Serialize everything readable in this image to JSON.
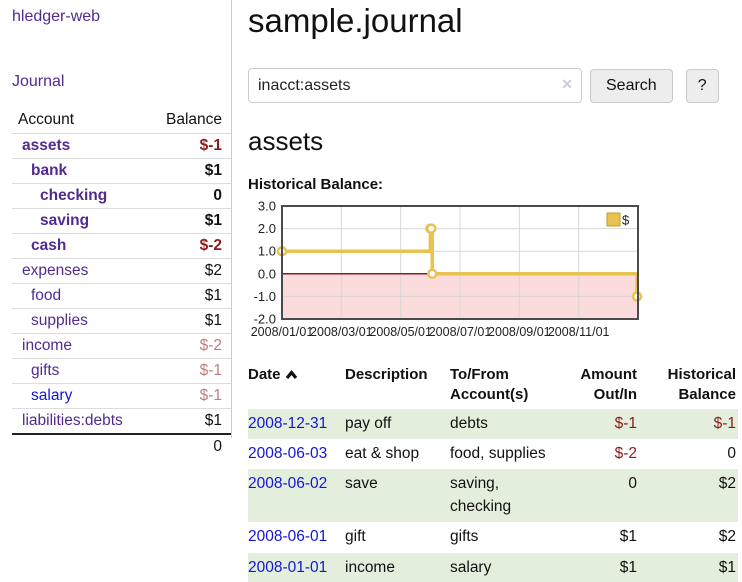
{
  "colors": {
    "link_purple": "#512b8f",
    "link_blue": "#1515d8",
    "neg_strong": "#8e1a1a",
    "neg_muted": "#c17d7d",
    "row_green": "#e3efdc",
    "button_bg": "#ededed"
  },
  "sidebar": {
    "app_title": "hledger-web",
    "journal_label": "Journal",
    "accounts_table": {
      "account_header": "Account",
      "balance_header": "Balance",
      "rows": [
        {
          "name": "assets",
          "indent": 1,
          "bold": true,
          "balance": "$-1"
        },
        {
          "name": "bank",
          "indent": 2,
          "bold": true,
          "balance": "$1"
        },
        {
          "name": "checking",
          "indent": 3,
          "bold": true,
          "balance": "0"
        },
        {
          "name": "saving",
          "indent": 3,
          "bold": true,
          "balance": "$1"
        },
        {
          "name": "cash",
          "indent": 2,
          "bold": true,
          "balance": "$-2"
        },
        {
          "name": "expenses",
          "indent": 1,
          "bold": false,
          "balance": "$2"
        },
        {
          "name": "food",
          "indent": 2,
          "bold": false,
          "balance": "$1"
        },
        {
          "name": "supplies",
          "indent": 2,
          "bold": false,
          "balance": "$1"
        },
        {
          "name": "income",
          "indent": 1,
          "bold": false,
          "balance": "$-2"
        },
        {
          "name": "gifts",
          "indent": 2,
          "bold": false,
          "balance": "$-1"
        },
        {
          "name": "salary",
          "indent": 2,
          "bold": false,
          "balance": "$-1",
          "link_variant": "blue"
        },
        {
          "name": "liabilities:debts",
          "indent": 1,
          "bold": false,
          "balance": "$1"
        }
      ],
      "total": "0"
    }
  },
  "header": {
    "title": "sample.journal"
  },
  "search": {
    "value": "inacct:assets",
    "clear_icon": "✕",
    "button_label": "Search",
    "help_label": "?"
  },
  "account_page": {
    "heading": "assets",
    "chart_label": "Historical Balance:"
  },
  "chart_data": {
    "type": "line",
    "title": "Historical Balance",
    "series": [
      {
        "name": "$",
        "step": true,
        "points": [
          {
            "date": "2008-01-01",
            "value": 1
          },
          {
            "date": "2008-06-01",
            "value": 2
          },
          {
            "date": "2008-06-02",
            "value": 2
          },
          {
            "date": "2008-06-03",
            "value": 0
          },
          {
            "date": "2008-12-31",
            "value": -1
          }
        ]
      }
    ],
    "ylim": [
      -2.0,
      3.0
    ],
    "yticks": [
      3.0,
      2.0,
      1.0,
      0.0,
      -1.0,
      -2.0
    ],
    "xtick_months": [
      0,
      2,
      4,
      6,
      8,
      10
    ],
    "xtick_labels": [
      "2008/01/01",
      "2008/03/01",
      "2008/05/01",
      "2008/07/01",
      "2008/09/01",
      "2008/11/01"
    ],
    "x_range_months": 12,
    "grid": true,
    "negative_region_shaded": true,
    "legend": {
      "label": "$",
      "position": "top-right"
    },
    "colors": {
      "line": "#e9c34f",
      "marker_fill": "#ffffff",
      "negative_region": "#fbdbdb",
      "zero_line": "#8b1c1c",
      "grid": "#d8d8d8",
      "border": "#4a4a4a",
      "legend_border": "#c19b2e"
    }
  },
  "register_table": {
    "headers": {
      "date": "Date",
      "description": "Description",
      "tofrom": "To/From Account(s)",
      "amount": "Amount Out/In",
      "balance": "Historical Balance"
    },
    "rows": [
      {
        "date": "2008-12-31",
        "description": "pay off",
        "accounts": "debts",
        "amount": "$-1",
        "balance": "$-1"
      },
      {
        "date": "2008-06-03",
        "description": "eat & shop",
        "accounts": "food, supplies",
        "amount": "$-2",
        "balance": "0"
      },
      {
        "date": "2008-06-02",
        "description": "save",
        "accounts": "saving, checking",
        "amount": "0",
        "balance": "$2"
      },
      {
        "date": "2008-06-01",
        "description": "gift",
        "accounts": "gifts",
        "amount": "$1",
        "balance": "$2"
      },
      {
        "date": "2008-01-01",
        "description": "income",
        "accounts": "salary",
        "amount": "$1",
        "balance": "$1"
      }
    ]
  }
}
